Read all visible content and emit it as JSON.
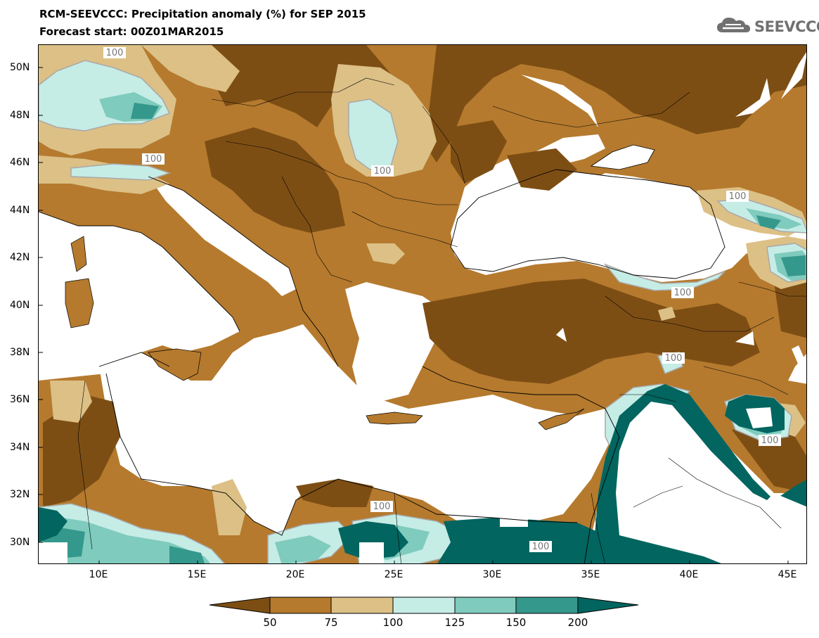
{
  "header": {
    "title": "RCM-SEEVCCC: Precipitation anomaly (%) for SEP 2015",
    "subtitle": "Forecast start: 00Z01MAR2015",
    "logo_text": "SEEVCCC",
    "logo_icon": "cloud-icon"
  },
  "map": {
    "lat_labels": [
      "50N",
      "48N",
      "46N",
      "44N",
      "42N",
      "40N",
      "38N",
      "36N",
      "34N",
      "32N",
      "30N"
    ],
    "lon_labels": [
      "10E",
      "15E",
      "20E",
      "25E",
      "30E",
      "35E",
      "40E",
      "45E"
    ],
    "contour_labels": [
      "100",
      "100",
      "100",
      "100",
      "100",
      "100",
      "100",
      "100",
      "100"
    ],
    "colors": {
      "below_50": "#7d4e14",
      "50_75": "#b57a2e",
      "75_100": "#dcc086",
      "100_125": "#c6ece6",
      "125_150": "#7fcbbd",
      "150_200": "#35988c",
      "above_200": "#02655f",
      "sea": "#ffffff"
    }
  },
  "colorbar": {
    "labels": [
      "50",
      "75",
      "100",
      "125",
      "150",
      "200"
    ],
    "colors": [
      "#7d4e14",
      "#b57a2e",
      "#dcc086",
      "#c6ece6",
      "#7fcbbd",
      "#35988c",
      "#02655f"
    ]
  }
}
